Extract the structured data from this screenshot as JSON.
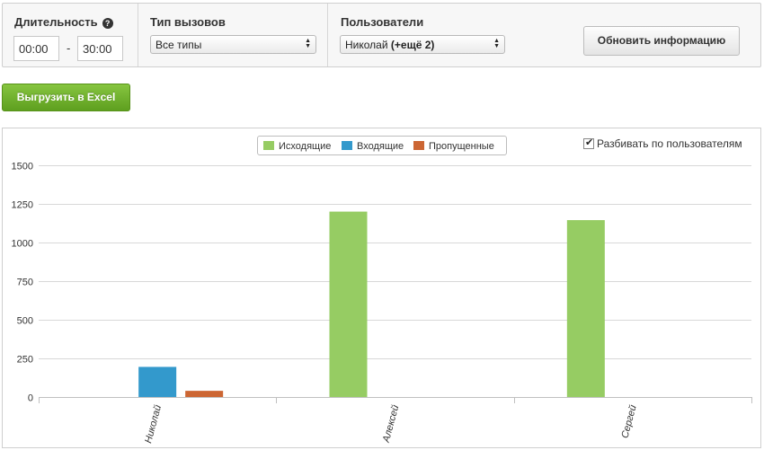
{
  "filters": {
    "duration": {
      "label": "Длительность",
      "help_icon": "question-circle-icon",
      "help_glyph": "?",
      "from": "00:00",
      "separator": "-",
      "to": "30:00"
    },
    "call_type": {
      "label": "Тип вызовов",
      "selected": "Все типы",
      "arrow_up": "▲",
      "arrow_down": "▼"
    },
    "users": {
      "label": "Пользователи",
      "selected_name": "Николай",
      "selected_more": "(+ещё 2)"
    },
    "refresh_button": "Обновить информацию"
  },
  "export_button": "Выгрузить в Excel",
  "chart_options": {
    "split_by_users_label": "Разбивать по пользователям",
    "split_by_users_checked": true
  },
  "colors": {
    "outgoing": "#96cc63",
    "incoming": "#3399cc",
    "missed": "#cc6633",
    "export_button": "#6aae25"
  },
  "chart_data": {
    "type": "bar",
    "categories": [
      "Николай",
      "Алексей",
      "Сергей"
    ],
    "series": [
      {
        "name": "Исходящие",
        "values": [
          0,
          1200,
          1145
        ]
      },
      {
        "name": "Входящие",
        "values": [
          195,
          0,
          0
        ]
      },
      {
        "name": "Пропущенные",
        "values": [
          40,
          0,
          0
        ]
      }
    ],
    "yticks": [
      "0",
      "250",
      "500",
      "750",
      "1000",
      "1250",
      "1500"
    ],
    "ylim": [
      0,
      1500
    ],
    "grid": true,
    "legend": "top-center"
  }
}
